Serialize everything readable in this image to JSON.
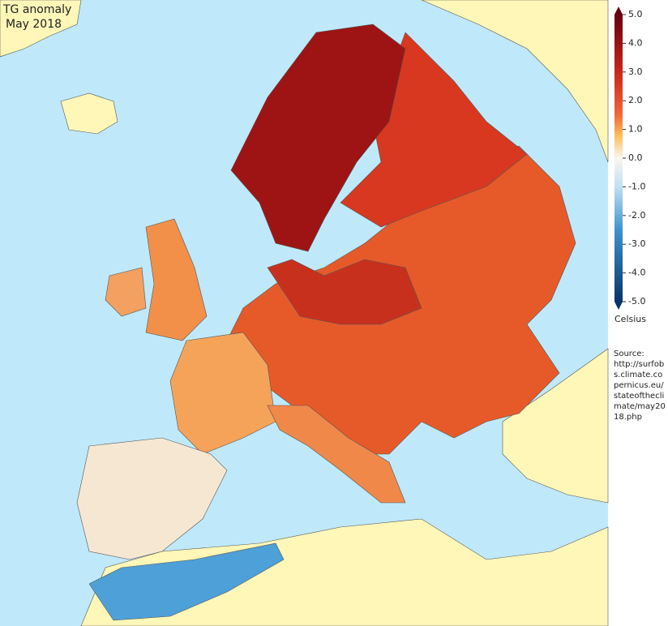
{
  "title": "TG anomaly",
  "subtitle": "May 2018",
  "colorbar": {
    "label": "Celsius",
    "lim": [
      -5,
      5
    ],
    "ticks": [
      {
        "value": 5,
        "label": "5.0"
      },
      {
        "value": 4,
        "label": "4.0"
      },
      {
        "value": 3,
        "label": "3.0"
      },
      {
        "value": 2,
        "label": "2.0"
      },
      {
        "value": 1,
        "label": "1.0"
      },
      {
        "value": 0,
        "label": "0.0"
      },
      {
        "value": -1,
        "label": "-1.0"
      },
      {
        "value": -2,
        "label": "-2.0"
      },
      {
        "value": -3,
        "label": "-3.0"
      },
      {
        "value": -4,
        "label": "-4.0"
      },
      {
        "value": -5,
        "label": "-5.0"
      }
    ]
  },
  "source": {
    "label": "Source:",
    "url": "http://surfobs.climate.copernicus.eu/stateoftheclimate/may2018.php"
  }
}
